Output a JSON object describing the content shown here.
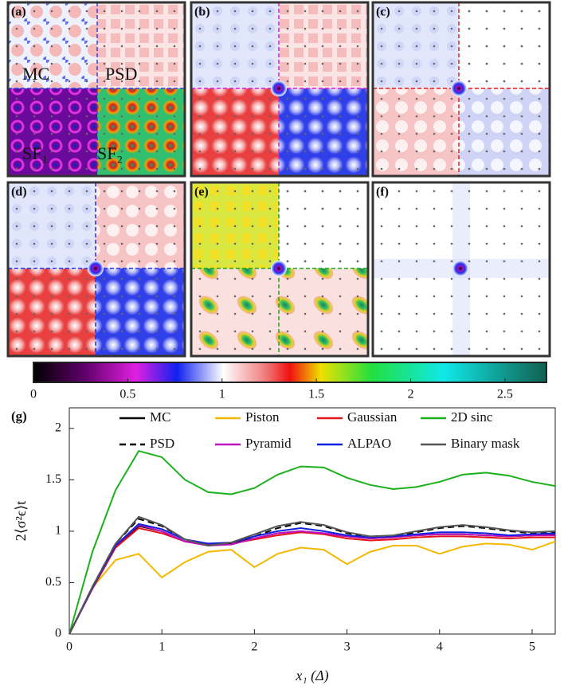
{
  "panels": [
    {
      "label": "(a)",
      "texts": [
        "MC",
        "PSD",
        "SF₁",
        "SF₂"
      ]
    },
    {
      "label": "(b)"
    },
    {
      "label": "(c)"
    },
    {
      "label": "(d)"
    },
    {
      "label": "(e)"
    },
    {
      "label": "(f)"
    }
  ],
  "colorbar": {
    "lim": [
      0,
      2.72
    ],
    "ticks": [
      0,
      0.5,
      1,
      1.5,
      2,
      2.5
    ]
  },
  "chart_data": {
    "type": "line",
    "label": "(g)",
    "xlabel": "x₁ (Δ)",
    "ylabel": "2⟨σ²ϵ⟩t",
    "xlim": [
      0,
      5.25
    ],
    "ylim": [
      0,
      2.2
    ],
    "xticks": [
      0,
      1,
      2,
      3,
      4,
      5
    ],
    "yticks": [
      0,
      0.5,
      1,
      1.5,
      2
    ],
    "legend_position": "top",
    "legend_columns": 4,
    "x": [
      0,
      0.25,
      0.5,
      0.75,
      1,
      1.25,
      1.5,
      1.75,
      2,
      2.25,
      2.5,
      2.75,
      3,
      3.25,
      3.5,
      3.75,
      4,
      4.25,
      4.5,
      4.75,
      5,
      5.25
    ],
    "series": [
      {
        "name": "MC",
        "color": "#000000",
        "dashed": false,
        "values": [
          0,
          0.45,
          0.85,
          1.05,
          1.0,
          0.9,
          0.87,
          0.88,
          0.93,
          0.98,
          1.0,
          0.98,
          0.95,
          0.93,
          0.94,
          0.96,
          0.97,
          0.97,
          0.96,
          0.95,
          0.96,
          0.97
        ]
      },
      {
        "name": "Piston",
        "color": "#f5b800",
        "dashed": false,
        "values": [
          0,
          0.45,
          0.72,
          0.78,
          0.55,
          0.7,
          0.8,
          0.82,
          0.65,
          0.78,
          0.84,
          0.82,
          0.68,
          0.8,
          0.86,
          0.86,
          0.78,
          0.85,
          0.88,
          0.87,
          0.82,
          0.9
        ]
      },
      {
        "name": "Gaussian",
        "color": "#e8141c",
        "dashed": false,
        "values": [
          0,
          0.44,
          0.84,
          1.03,
          0.98,
          0.9,
          0.87,
          0.88,
          0.92,
          0.96,
          0.99,
          0.97,
          0.93,
          0.91,
          0.92,
          0.94,
          0.95,
          0.95,
          0.94,
          0.93,
          0.94,
          0.94
        ]
      },
      {
        "name": "2D sinc",
        "color": "#1db01d",
        "dashed": false,
        "values": [
          0,
          0.8,
          1.4,
          1.78,
          1.72,
          1.5,
          1.38,
          1.36,
          1.42,
          1.55,
          1.63,
          1.62,
          1.52,
          1.45,
          1.41,
          1.43,
          1.48,
          1.55,
          1.57,
          1.54,
          1.48,
          1.44
        ]
      },
      {
        "name": "PSD",
        "color": "#000000",
        "dashed": true,
        "values": [
          0,
          0.46,
          0.88,
          1.12,
          1.05,
          0.92,
          0.86,
          0.88,
          0.95,
          1.03,
          1.08,
          1.05,
          0.98,
          0.94,
          0.95,
          0.99,
          1.03,
          1.05,
          1.03,
          1.0,
          0.98,
          0.99
        ]
      },
      {
        "name": "Pyramid",
        "color": "#c010c0",
        "dashed": false,
        "values": [
          0,
          0.45,
          0.86,
          1.06,
          1.0,
          0.9,
          0.86,
          0.87,
          0.93,
          0.98,
          1.0,
          0.98,
          0.95,
          0.93,
          0.94,
          0.96,
          0.97,
          0.97,
          0.96,
          0.95,
          0.96,
          0.96
        ]
      },
      {
        "name": "ALPAO",
        "color": "#1020e0",
        "dashed": false,
        "values": [
          0,
          0.45,
          0.86,
          1.07,
          1.02,
          0.92,
          0.88,
          0.89,
          0.95,
          1.0,
          1.03,
          1.0,
          0.96,
          0.94,
          0.95,
          0.97,
          0.99,
          0.99,
          0.98,
          0.96,
          0.97,
          0.98
        ]
      },
      {
        "name": "Binary mask",
        "color": "#555555",
        "dashed": false,
        "values": [
          0,
          0.46,
          0.88,
          1.14,
          1.06,
          0.92,
          0.86,
          0.89,
          0.97,
          1.05,
          1.09,
          1.06,
          0.99,
          0.95,
          0.96,
          1.0,
          1.04,
          1.06,
          1.04,
          1.01,
          0.99,
          1.0
        ]
      }
    ]
  }
}
